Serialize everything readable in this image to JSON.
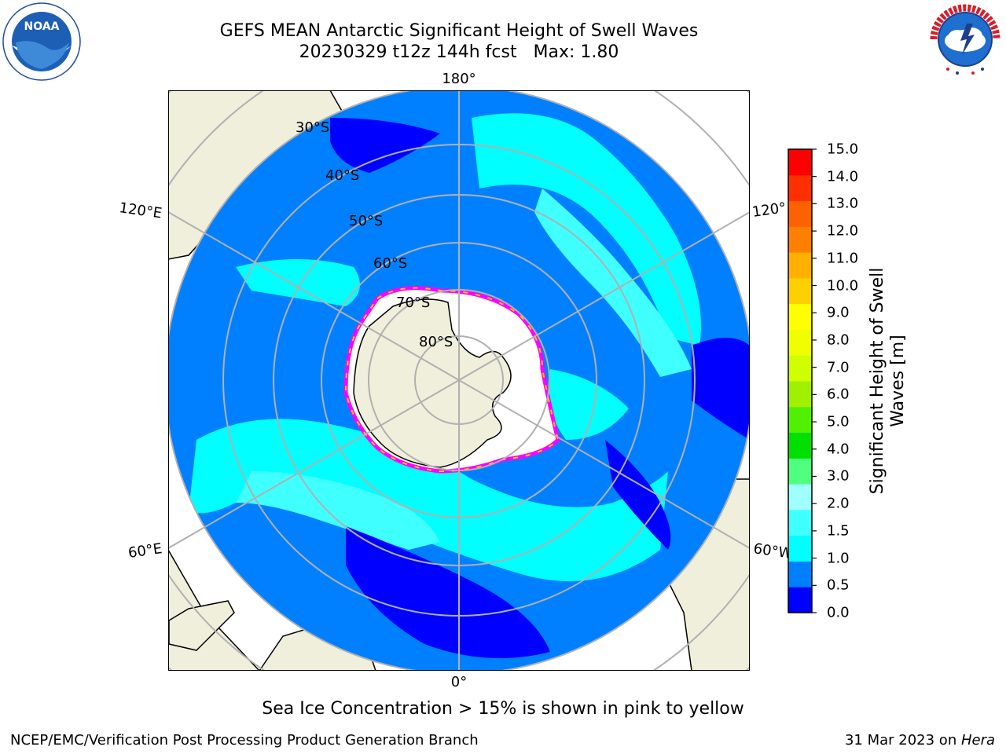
{
  "title": "GEFS MEAN Antarctic Significant Height of Swell Waves",
  "subtitle": "20230329 t12z 144h fcst   Max: 1.80",
  "caption": "Sea Ice Concentration > 15% is shown in pink to yellow",
  "footer": {
    "left": "NCEP/EMC/Verification Post Processing Product Generation Branch",
    "date": "31 Mar 2023 on ",
    "machine": "Hera"
  },
  "logos": {
    "left": "NOAA",
    "left_ring": "NATIONAL OCEANIC AND ATMOSPHERIC ADMINISTRATION · U.S. DEPARTMENT OF COMMERCE",
    "right_ring": "NATIONAL WEATHER SERVICE"
  },
  "map": {
    "projection": "south polar stereographic",
    "lon_labels": {
      "top": "180°",
      "bottom": "0°",
      "upper_left": "120°E",
      "lower_left": "60°E",
      "upper_right": "120°",
      "lower_right": "60°W"
    },
    "lat_labels": [
      "30°S",
      "40°S",
      "50°S",
      "60°S",
      "70°S",
      "80°S"
    ],
    "colors": {
      "ocean_deep": "#0080ff",
      "ocean_low": "#0000ff",
      "ocean_mid": "#00ffff",
      "ocean_high": "#80ffff",
      "land": "#efefdc",
      "ice_pink": "#ff00ff",
      "ice_yellow": "#ffc000",
      "grid": "#b0b0b0"
    }
  },
  "colorbar": {
    "label": "Significant Height of Swell Waves [m]",
    "ticks": [
      "0.0",
      "0.5",
      "1.0",
      "1.5",
      "2.0",
      "3.0",
      "4.0",
      "5.0",
      "6.0",
      "7.0",
      "8.0",
      "9.0",
      "10.0",
      "11.0",
      "12.0",
      "13.0",
      "14.0",
      "15.0"
    ],
    "colors": [
      "#0000ff",
      "#0080ff",
      "#00ffff",
      "#40ffff",
      "#a0ffff",
      "#50ff80",
      "#00e000",
      "#50f000",
      "#a0f000",
      "#d0ff00",
      "#f0ff00",
      "#ffff00",
      "#ffd000",
      "#ffb000",
      "#ff8000",
      "#ff6000",
      "#ff3000",
      "#ff0000"
    ]
  }
}
